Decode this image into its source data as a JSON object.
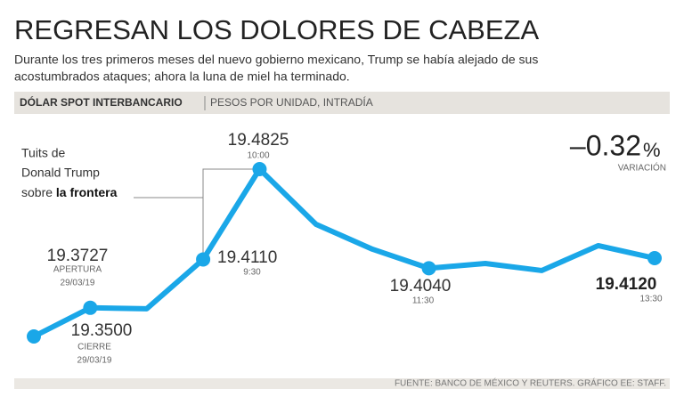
{
  "chart_data": {
    "type": "line",
    "title": "REGRESAN LOS DOLORES DE CABEZA",
    "subtitle": [
      "Durante los tres primeros meses del nuevo gobierno mexicano, Trump se había alejado de sus",
      "acostumbrados ataques; ahora la luna de miel ha terminado."
    ],
    "header": "DÓLAR SPOT INTERBANCARIO",
    "unit_label": "PESOS POR UNIDAD, INTRADÍA",
    "annotation": {
      "lines": [
        "Tuits de",
        "Donald Trump"
      ],
      "last": "sobre",
      "bold": "la frontera"
    },
    "change": {
      "label": "–0.32",
      "unit": "%",
      "caption": "VARIACIÓN"
    },
    "source": "FUENTE: BANCO DE MÉXICO Y REUTERS. GRÁFICO EE: STAFF.",
    "categories": [
      "29/03/19",
      "29/03/19",
      null,
      "9:30",
      "10:00",
      null,
      null,
      "11:30",
      null,
      null,
      null,
      "13:30"
    ],
    "captions": [
      "CIERRE",
      "APERTURA",
      null,
      null,
      null,
      null,
      null,
      null,
      null,
      null,
      null,
      null
    ],
    "series": [
      {
        "name": null,
        "color": "#1aa7e8",
        "values": [
          19.35,
          19.3727,
          19.3719,
          19.411,
          19.4825,
          19.4388,
          19.4191,
          19.404,
          19.4078,
          19.4022,
          19.4219,
          19.412
        ],
        "value_labels": [
          "19.3500",
          "19.3727",
          null,
          "19.4110",
          "19.4825",
          null,
          null,
          "19.4040",
          null,
          null,
          null,
          "19.4120"
        ]
      }
    ]
  }
}
